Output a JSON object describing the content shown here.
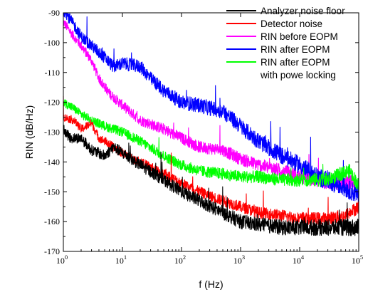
{
  "chart_data": {
    "type": "line",
    "xlabel": "f (Hz)",
    "ylabel": "RIN (dB/Hz)",
    "xscale": "log",
    "xlim": [
      1,
      100000
    ],
    "ylim": [
      -170,
      -90
    ],
    "x_ticks": [
      {
        "value": 1,
        "mantissa": "10",
        "exp": "0"
      },
      {
        "value": 10,
        "mantissa": "10",
        "exp": "1"
      },
      {
        "value": 100,
        "mantissa": "10",
        "exp": "2"
      },
      {
        "value": 1000,
        "mantissa": "10",
        "exp": "3"
      },
      {
        "value": 10000,
        "mantissa": "10",
        "exp": "4"
      },
      {
        "value": 100000,
        "mantissa": "10",
        "exp": "5"
      }
    ],
    "y_ticks": [
      -90,
      -100,
      -110,
      -120,
      -130,
      -140,
      -150,
      -160,
      -170
    ],
    "grid": false,
    "legend_position": "top-right",
    "series": [
      {
        "name": "Analyzer noise floor",
        "color": "#000000",
        "noise": 1.8,
        "points": [
          [
            1,
            -129
          ],
          [
            1.3,
            -132
          ],
          [
            2,
            -132
          ],
          [
            3,
            -136
          ],
          [
            5,
            -138
          ],
          [
            7,
            -135
          ],
          [
            10,
            -137
          ],
          [
            20,
            -141
          ],
          [
            50,
            -146
          ],
          [
            100,
            -150
          ],
          [
            200,
            -153
          ],
          [
            500,
            -157
          ],
          [
            1000,
            -160
          ],
          [
            2000,
            -161
          ],
          [
            5000,
            -162
          ],
          [
            10000,
            -162
          ],
          [
            50000,
            -162
          ],
          [
            100000,
            -162
          ]
        ]
      },
      {
        "name": "Detector noise",
        "color": "#ff0000",
        "noise": 1.4,
        "points": [
          [
            1,
            -125
          ],
          [
            1.5,
            -126
          ],
          [
            2,
            -129
          ],
          [
            3,
            -127
          ],
          [
            4,
            -132
          ],
          [
            5,
            -133
          ],
          [
            7,
            -135
          ],
          [
            10,
            -137
          ],
          [
            20,
            -140
          ],
          [
            50,
            -144
          ],
          [
            100,
            -147
          ],
          [
            200,
            -150
          ],
          [
            500,
            -153
          ],
          [
            1000,
            -155
          ],
          [
            2000,
            -157
          ],
          [
            5000,
            -158
          ],
          [
            10000,
            -159
          ],
          [
            30000,
            -159
          ],
          [
            60000,
            -158
          ],
          [
            100000,
            -155
          ]
        ]
      },
      {
        "name": "RIN before EOPM",
        "color": "#ff00ff",
        "noise": 1.6,
        "points": [
          [
            1,
            -93
          ],
          [
            1.5,
            -98
          ],
          [
            2,
            -101
          ],
          [
            3,
            -106
          ],
          [
            4,
            -112
          ],
          [
            6,
            -117
          ],
          [
            10,
            -121
          ],
          [
            20,
            -126
          ],
          [
            50,
            -129
          ],
          [
            100,
            -132
          ],
          [
            200,
            -135
          ],
          [
            500,
            -136
          ],
          [
            1000,
            -139
          ],
          [
            2000,
            -141
          ],
          [
            5000,
            -143
          ],
          [
            10000,
            -145
          ],
          [
            30000,
            -147
          ],
          [
            100000,
            -147
          ]
        ]
      },
      {
        "name": "RIN after EOPM",
        "color": "#0000ff",
        "noise": 2.0,
        "points": [
          [
            1,
            -89
          ],
          [
            1.5,
            -94
          ],
          [
            2,
            -98
          ],
          [
            3,
            -101
          ],
          [
            5,
            -105
          ],
          [
            7,
            -108
          ],
          [
            10,
            -107
          ],
          [
            20,
            -108
          ],
          [
            30,
            -112
          ],
          [
            50,
            -116
          ],
          [
            70,
            -118
          ],
          [
            100,
            -120
          ],
          [
            200,
            -121
          ],
          [
            500,
            -123
          ],
          [
            1000,
            -128
          ],
          [
            2000,
            -133
          ],
          [
            5000,
            -138
          ],
          [
            10000,
            -141
          ],
          [
            20000,
            -145
          ],
          [
            50000,
            -148
          ],
          [
            100000,
            -151
          ]
        ]
      },
      {
        "name": "RIN after EOPM with powe locking",
        "color": "#00ff00",
        "noise": 1.5,
        "points": [
          [
            1,
            -120
          ],
          [
            1.5,
            -122
          ],
          [
            2,
            -124
          ],
          [
            3,
            -126
          ],
          [
            5,
            -128
          ],
          [
            10,
            -130
          ],
          [
            20,
            -133
          ],
          [
            50,
            -138
          ],
          [
            100,
            -141
          ],
          [
            200,
            -143
          ],
          [
            500,
            -144
          ],
          [
            1000,
            -145
          ],
          [
            2000,
            -145
          ],
          [
            5000,
            -146
          ],
          [
            10000,
            -146
          ],
          [
            30000,
            -146
          ],
          [
            50000,
            -144
          ],
          [
            70000,
            -143
          ],
          [
            100000,
            -148
          ]
        ]
      }
    ],
    "legend": [
      {
        "series_index": 0,
        "lines": [
          "Analyzer noise floor"
        ]
      },
      {
        "series_index": 1,
        "lines": [
          "Detector noise"
        ]
      },
      {
        "series_index": 2,
        "lines": [
          "RIN before EOPM"
        ]
      },
      {
        "series_index": 3,
        "lines": [
          "RIN after EOPM"
        ]
      },
      {
        "series_index": 4,
        "lines": [
          "RIN after EOPM",
          "with powe locking"
        ]
      }
    ]
  }
}
